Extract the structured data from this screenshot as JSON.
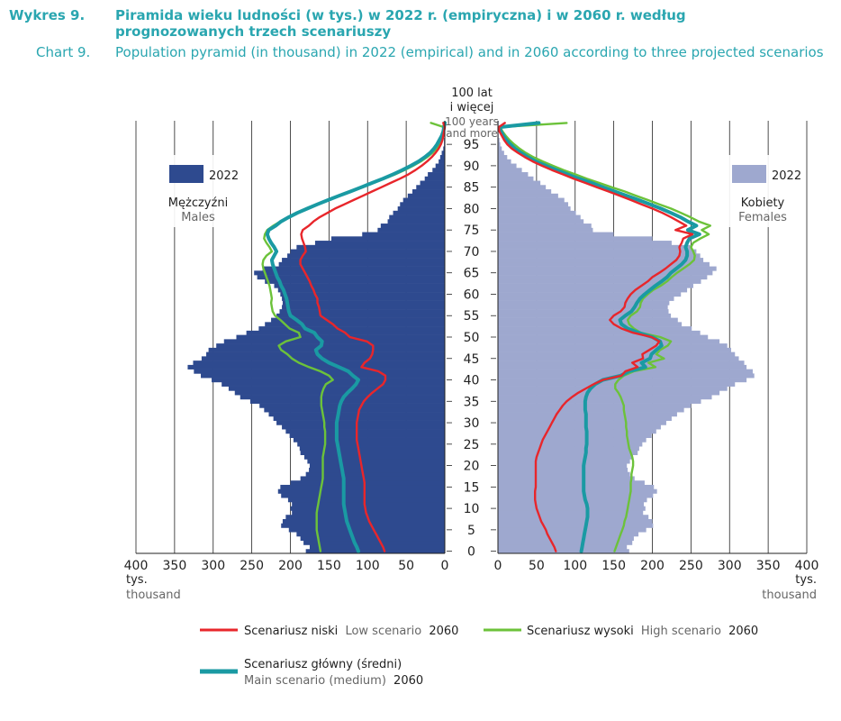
{
  "header": {
    "pl_label": "Wykres 9.",
    "pl_title": "Piramida wieku ludności (w tys.) w 2022 r. (empiryczna) i w 2060 r. według prognozowanych trzech scenariuszy",
    "en_label": "Chart 9.",
    "en_title": "Population pyramid (in thousand) in 2022 (empirical) and in 2060 according to three projected scenarios"
  },
  "colors": {
    "male_bar": "#2e4a8f",
    "female_bar": "#9ea8cf",
    "low": "#e8262b",
    "high": "#6cc23a",
    "main": "#1a9aa3",
    "title": "#2aa6b0",
    "grey_text": "#666666"
  },
  "chart_data": {
    "type": "population-pyramid",
    "title": "Population pyramid (in thousand) in 2022 (empirical) and in 2060 according to three projected scenarios",
    "age_ticks": [
      0,
      5,
      10,
      15,
      20,
      25,
      30,
      35,
      40,
      45,
      50,
      55,
      60,
      65,
      70,
      75,
      80,
      85,
      90,
      95
    ],
    "top_age_label_pl_1": "100 lat",
    "top_age_label_pl_2": "i więcej",
    "top_age_label_en_1": "100 years",
    "top_age_label_en_2": "and more",
    "x_ticks": [
      400,
      350,
      300,
      250,
      200,
      150,
      100,
      50,
      0
    ],
    "x_ticks_right": [
      0,
      50,
      100,
      150,
      200,
      250,
      300,
      350,
      400
    ],
    "xlim": [
      0,
      400
    ],
    "unit_pl": "tys.",
    "unit_en": "thousand",
    "males_label_pl": "Mężczyźni",
    "males_label_en": "Males",
    "females_label_pl": "Kobiety",
    "females_label_en": "Females",
    "bar_legend": "2022",
    "male_2022": [
      180,
      175,
      183,
      187,
      192,
      202,
      212,
      210,
      206,
      198,
      200,
      198,
      203,
      212,
      216,
      213,
      200,
      187,
      180,
      176,
      175,
      178,
      182,
      187,
      188,
      191,
      196,
      201,
      206,
      211,
      218,
      222,
      228,
      234,
      240,
      252,
      265,
      272,
      280,
      289,
      302,
      316,
      325,
      333,
      326,
      315,
      309,
      306,
      296,
      286,
      270,
      257,
      241,
      233,
      225,
      218,
      214,
      211,
      210,
      211,
      213,
      216,
      221,
      233,
      243,
      247,
      236,
      215,
      211,
      204,
      200,
      192,
      168,
      147,
      107,
      87,
      83,
      74,
      72,
      67,
      61,
      58,
      54,
      48,
      42,
      37,
      32,
      26,
      22,
      16,
      12,
      8,
      6,
      4,
      2,
      1,
      1,
      0,
      0,
      0,
      0
    ],
    "female_2022": [
      170,
      167,
      174,
      176,
      182,
      192,
      201,
      200,
      195,
      188,
      191,
      189,
      193,
      201,
      206,
      202,
      190,
      177,
      171,
      168,
      167,
      171,
      175,
      181,
      183,
      187,
      192,
      199,
      205,
      211,
      218,
      225,
      232,
      241,
      250,
      263,
      277,
      287,
      297,
      307,
      322,
      332,
      330,
      322,
      319,
      312,
      307,
      302,
      297,
      287,
      272,
      262,
      251,
      238,
      233,
      224,
      221,
      220,
      222,
      228,
      237,
      245,
      253,
      263,
      271,
      278,
      283,
      274,
      266,
      262,
      257,
      250,
      225,
      200,
      150,
      123,
      121,
      111,
      107,
      101,
      94,
      91,
      86,
      78,
      69,
      62,
      55,
      46,
      39,
      31,
      24,
      17,
      12,
      8,
      5,
      3,
      2,
      1,
      0,
      0,
      1
    ],
    "male_low": [
      78,
      80,
      83,
      86,
      89,
      92,
      95,
      98,
      100,
      102,
      103,
      104,
      104,
      104,
      104,
      104,
      104,
      105,
      106,
      107,
      108,
      109,
      110,
      111,
      112,
      113,
      114,
      114,
      114,
      114,
      114,
      113,
      112,
      111,
      108,
      105,
      100,
      94,
      87,
      80,
      77,
      77,
      86,
      108,
      104,
      97,
      94,
      93,
      93,
      101,
      123,
      129,
      139,
      145,
      153,
      161,
      162,
      163,
      165,
      165,
      168,
      170,
      173,
      175,
      178,
      181,
      184,
      187,
      187,
      184,
      180,
      181,
      183,
      185,
      186,
      184,
      176,
      170,
      162,
      152,
      142,
      130,
      118,
      106,
      94,
      82,
      70,
      58,
      47,
      38,
      30,
      23,
      17,
      12,
      8,
      5,
      3,
      2,
      1,
      0,
      2
    ],
    "male_main": [
      112,
      114,
      117,
      119,
      121,
      123,
      125,
      127,
      128,
      129,
      130,
      131,
      131,
      131,
      131,
      131,
      131,
      131,
      132,
      133,
      134,
      135,
      136,
      137,
      138,
      139,
      140,
      140,
      140,
      140,
      140,
      139,
      138,
      137,
      136,
      134,
      131,
      126,
      120,
      115,
      112,
      119,
      125,
      137,
      150,
      159,
      165,
      167,
      160,
      159,
      165,
      169,
      181,
      185,
      192,
      200,
      202,
      203,
      204,
      205,
      207,
      209,
      212,
      214,
      217,
      219,
      221,
      223,
      224,
      221,
      218,
      221,
      225,
      228,
      230,
      228,
      219,
      212,
      202,
      191,
      178,
      165,
      151,
      137,
      122,
      108,
      94,
      80,
      67,
      55,
      44,
      34,
      26,
      19,
      14,
      10,
      7,
      4,
      2,
      1,
      0
    ],
    "male_high": [
      161,
      162,
      163,
      164,
      165,
      166,
      166,
      166,
      166,
      166,
      165,
      164,
      163,
      162,
      161,
      160,
      159,
      158,
      158,
      158,
      158,
      158,
      158,
      157,
      156,
      155,
      155,
      155,
      155,
      156,
      156,
      157,
      158,
      159,
      160,
      160,
      160,
      159,
      157,
      154,
      145,
      150,
      161,
      176,
      189,
      198,
      204,
      212,
      215,
      206,
      187,
      189,
      201,
      207,
      213,
      220,
      223,
      224,
      225,
      224,
      225,
      226,
      227,
      229,
      231,
      233,
      235,
      236,
      235,
      231,
      224,
      227,
      231,
      234,
      233,
      230,
      222,
      213,
      203,
      192,
      180,
      166,
      152,
      137,
      121,
      106,
      92,
      78,
      64,
      52,
      41,
      31,
      23,
      16,
      11,
      7,
      4,
      2,
      1,
      1,
      18
    ],
    "female_low": [
      75,
      73,
      70,
      67,
      64,
      62,
      59,
      56,
      54,
      52,
      50,
      49,
      48,
      48,
      48,
      49,
      49,
      49,
      49,
      49,
      49,
      49,
      50,
      52,
      54,
      56,
      58,
      61,
      64,
      67,
      70,
      73,
      76,
      80,
      84,
      89,
      96,
      104,
      114,
      124,
      136,
      160,
      165,
      181,
      174,
      188,
      187,
      196,
      205,
      209,
      199,
      175,
      160,
      150,
      145,
      150,
      159,
      164,
      165,
      168,
      172,
      178,
      186,
      194,
      200,
      209,
      217,
      224,
      231,
      235,
      236,
      235,
      238,
      240,
      252,
      230,
      244,
      234,
      224,
      213,
      200,
      186,
      172,
      158,
      143,
      128,
      113,
      98,
      84,
      70,
      57,
      45,
      35,
      26,
      18,
      12,
      8,
      5,
      2,
      1,
      9
    ],
    "female_main": [
      108,
      109,
      110,
      111,
      112,
      113,
      114,
      115,
      116,
      116,
      116,
      115,
      113,
      112,
      111,
      111,
      111,
      111,
      111,
      111,
      111,
      112,
      113,
      114,
      114,
      115,
      115,
      115,
      115,
      114,
      114,
      114,
      114,
      113,
      113,
      113,
      114,
      116,
      120,
      126,
      136,
      159,
      170,
      191,
      186,
      197,
      199,
      205,
      212,
      210,
      200,
      182,
      168,
      160,
      158,
      165,
      173,
      177,
      180,
      184,
      190,
      197,
      204,
      212,
      219,
      224,
      231,
      238,
      243,
      245,
      245,
      243,
      245,
      248,
      261,
      246,
      257,
      246,
      236,
      224,
      211,
      197,
      182,
      167,
      151,
      136,
      121,
      105,
      90,
      76,
      62,
      49,
      39,
      30,
      22,
      16,
      11,
      7,
      4,
      2,
      53
    ],
    "female_high": [
      151,
      153,
      155,
      157,
      159,
      161,
      163,
      164,
      166,
      167,
      168,
      169,
      170,
      171,
      172,
      172,
      172,
      173,
      173,
      174,
      175,
      175,
      174,
      172,
      170,
      169,
      168,
      167,
      167,
      166,
      166,
      165,
      164,
      163,
      163,
      161,
      159,
      156,
      152,
      152,
      156,
      163,
      176,
      204,
      195,
      215,
      205,
      210,
      220,
      224,
      210,
      185,
      176,
      170,
      168,
      172,
      180,
      184,
      185,
      188,
      194,
      201,
      211,
      219,
      225,
      232,
      240,
      248,
      254,
      255,
      253,
      250,
      253,
      262,
      273,
      264,
      275,
      260,
      249,
      237,
      224,
      209,
      194,
      179,
      164,
      147,
      131,
      115,
      100,
      85,
      71,
      58,
      46,
      36,
      28,
      21,
      15,
      10,
      6,
      3,
      89
    ],
    "legend": {
      "low_pl": "Scenariusz niski",
      "low_en": "Low scenario",
      "high_pl": "Scenariusz wysoki",
      "high_en": "High scenario",
      "main_pl": "Scenariusz główny (średni)",
      "main_en": "Main scenario (medium)",
      "year": "2060"
    }
  }
}
